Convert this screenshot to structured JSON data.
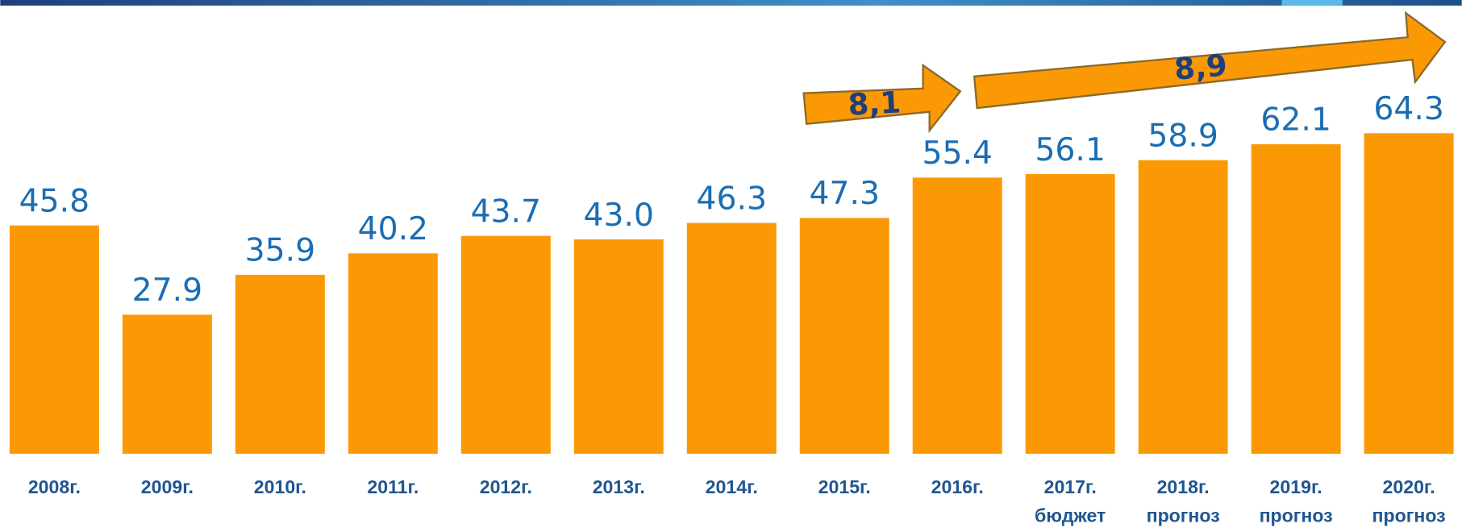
{
  "chart_data": {
    "type": "bar",
    "categories": [
      "2008г.",
      "2009г.",
      "2010г.",
      "2011г.",
      "2012г.",
      "2013г.",
      "2014г.",
      "2015г.",
      "2016г.",
      "2017г.",
      "2018г.",
      "2019г.",
      "2020г."
    ],
    "subcategories": [
      null,
      null,
      null,
      null,
      null,
      null,
      null,
      null,
      null,
      "бюджет",
      "прогноз",
      "прогноз",
      "прогноз"
    ],
    "values": [
      45.8,
      27.9,
      35.9,
      40.2,
      43.7,
      43.0,
      46.3,
      47.3,
      55.4,
      56.1,
      58.9,
      62.1,
      64.3
    ],
    "value_labels": [
      "45.8",
      "27.9",
      "35.9",
      "40.2",
      "43.7",
      "43.0",
      "46.3",
      "47.3",
      "55.4",
      "56.1",
      "58.9",
      "62.1",
      "64.3"
    ],
    "color": "#fb9905",
    "ylim": [
      0,
      70
    ],
    "annotations": [
      "8,1",
      "8,9"
    ]
  }
}
